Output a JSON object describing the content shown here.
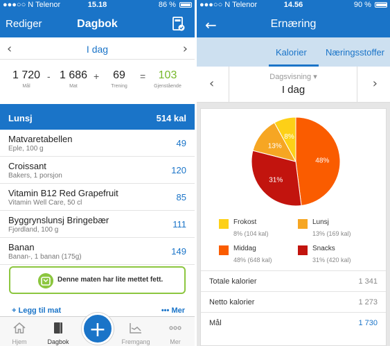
{
  "left": {
    "status": {
      "carrier": "●●●○○ N Telenor",
      "time": "15.18",
      "battery": "86 %",
      "battery_level": 0.86
    },
    "nav": {
      "edit_label": "Rediger",
      "title": "Dagbok"
    },
    "date": {
      "label": "I dag"
    },
    "calc": {
      "goal": {
        "value": "1 720",
        "label": "Mål"
      },
      "food": {
        "value": "1 686",
        "label": "Mat"
      },
      "exercise": {
        "value": "69",
        "label": "Trening"
      },
      "remaining": {
        "value": "103",
        "label": "Gjenstående"
      },
      "op_minus": "-",
      "op_plus": "+",
      "op_equals": "="
    },
    "meal": {
      "name": "Lunsj",
      "calories": "514 kal"
    },
    "foods": [
      {
        "name": "Matvaretabellen",
        "desc": "Eple, 100 g",
        "cal": "49"
      },
      {
        "name": "Croissant",
        "desc": "Bakers, 1 porsjon",
        "cal": "120"
      },
      {
        "name": "Vitamin B12 Red Grapefruit",
        "desc": "Vitamin Well Care, 50 cl",
        "cal": "85"
      },
      {
        "name": "Byggrynslunsj Bringebær",
        "desc": "Fjordland, 100 g",
        "cal": "111"
      },
      {
        "name": "Banan",
        "desc": "Banan-, 1 banan (175g)",
        "cal": "149"
      }
    ],
    "tip": {
      "text": "Denne maten har lite mettet fett.",
      "icon": "scale-icon",
      "color": "#8cc63f"
    },
    "actions": {
      "add_food": "+ Legg til mat",
      "more": "••• Mer"
    },
    "tabs": [
      {
        "label": "Hjem",
        "icon": "home-icon"
      },
      {
        "label": "Dagbok",
        "icon": "diary-icon"
      },
      {
        "label": "Fremgang",
        "icon": "progress-icon"
      },
      {
        "label": "Mer",
        "icon": "more-icon"
      }
    ],
    "fab_symbol": "+"
  },
  "right": {
    "status": {
      "carrier": "●●●○○ N Telenor",
      "time": "14.56",
      "battery": "90 %",
      "battery_level": 0.9
    },
    "nav": {
      "title": "Ernæring",
      "back_symbol": "←"
    },
    "segments": {
      "calories": "Kalorier",
      "nutrients": "Næringsstoffer"
    },
    "date": {
      "view": "Dagsvisning ▾",
      "label": "I dag"
    },
    "chart_data": {
      "type": "pie",
      "title": "",
      "slices": [
        {
          "name": "Frokost",
          "percent": 8,
          "kcal": 104,
          "color": "#fdd017",
          "label": "8%",
          "legend": "8% (104 kal)"
        },
        {
          "name": "Lunsj",
          "percent": 13,
          "kcal": 169,
          "color": "#f6a623",
          "label": "13%",
          "legend": "13% (169 kal)"
        },
        {
          "name": "Middag",
          "percent": 48,
          "kcal": 648,
          "color": "#fa5c00",
          "label": "48%",
          "legend": "48% (648 kal)"
        },
        {
          "name": "Snacks",
          "percent": 31,
          "kcal": 420,
          "color": "#c2140e",
          "label": "31%",
          "legend": "31% (420 kal)"
        }
      ]
    },
    "totals": [
      {
        "label": "Totale kalorier",
        "value": "1 341"
      },
      {
        "label": "Netto kalorier",
        "value": "1 273"
      },
      {
        "label": "Mål",
        "value": "1 730"
      }
    ]
  },
  "colors": {
    "primary": "#1a74c8",
    "green": "#76b82a"
  }
}
